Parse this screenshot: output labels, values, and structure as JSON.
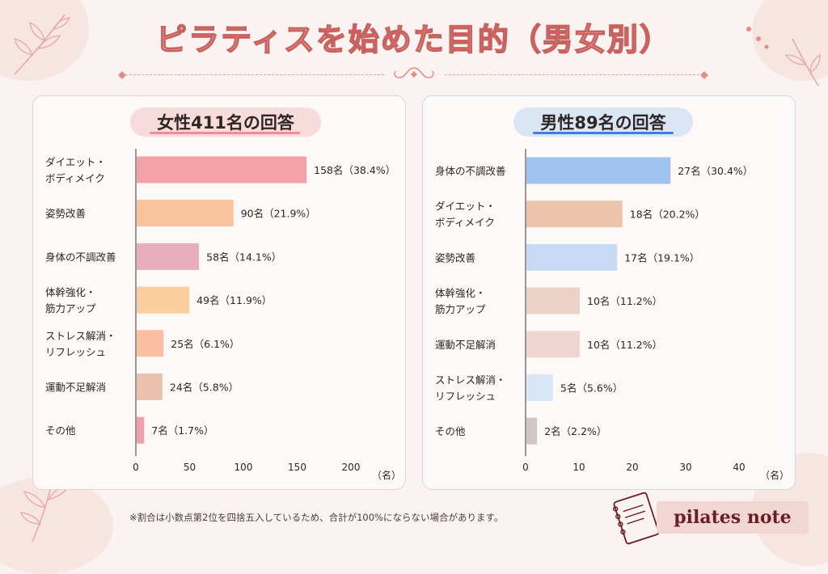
{
  "page_title": "ピラティスを始めた目的（男女別）",
  "footnote": "※割合は小数点第2位を四捨五入しているため、合計が100%にならない場合があります。",
  "brand": "pilates note",
  "chart_data": [
    {
      "type": "bar",
      "orientation": "horizontal",
      "title": "女性411名の回答",
      "categories": [
        "ダイエット・\nボディメイク",
        "姿勢改善",
        "身体の不調改善",
        "体幹強化・\n筋力アップ",
        "ストレス解消・\nリフレッシュ",
        "運動不足解消",
        "その他"
      ],
      "values": [
        158,
        90,
        58,
        49,
        25,
        24,
        7
      ],
      "value_labels": [
        "158名（38.4%）",
        "90名（21.9%）",
        "58名（14.1%）",
        "49名（11.9%）",
        "25名（6.1%）",
        "24名（5.8%）",
        "7名（1.7%）"
      ],
      "colors": [
        "#f4a1a8",
        "#f8c39c",
        "#e8aebd",
        "#fbcd9f",
        "#f9bfa2",
        "#ebc2b0",
        "#f0a0ac"
      ],
      "xlim": [
        0,
        200
      ],
      "xticks": [
        0,
        50,
        100,
        150,
        200
      ],
      "xlabel": "（名）",
      "accent": "#f28b95"
    },
    {
      "type": "bar",
      "orientation": "horizontal",
      "title": "男性89名の回答",
      "categories": [
        "身体の不調改善",
        "ダイエット・\nボディメイク",
        "姿勢改善",
        "体幹強化・\n筋力アップ",
        "運動不足解消",
        "ストレス解消・\nリフレッシュ",
        "その他"
      ],
      "values": [
        27,
        18,
        17,
        10,
        10,
        5,
        2
      ],
      "value_labels": [
        "27名（30.4%）",
        "18名（20.2%）",
        "17名（19.1%）",
        "10名（11.2%）",
        "10名（11.2%）",
        "5名（5.6%）",
        "2名（2.2%）"
      ],
      "colors": [
        "#9fc2ef",
        "#ecc4ab",
        "#c7daf3",
        "#ecd1c6",
        "#efd6ce",
        "#d9e6f6",
        "#d1c6c6"
      ],
      "xlim": [
        0,
        40
      ],
      "xticks": [
        0,
        10,
        20,
        30,
        40
      ],
      "xlabel": "（名）",
      "accent": "#3f7fd9"
    }
  ]
}
